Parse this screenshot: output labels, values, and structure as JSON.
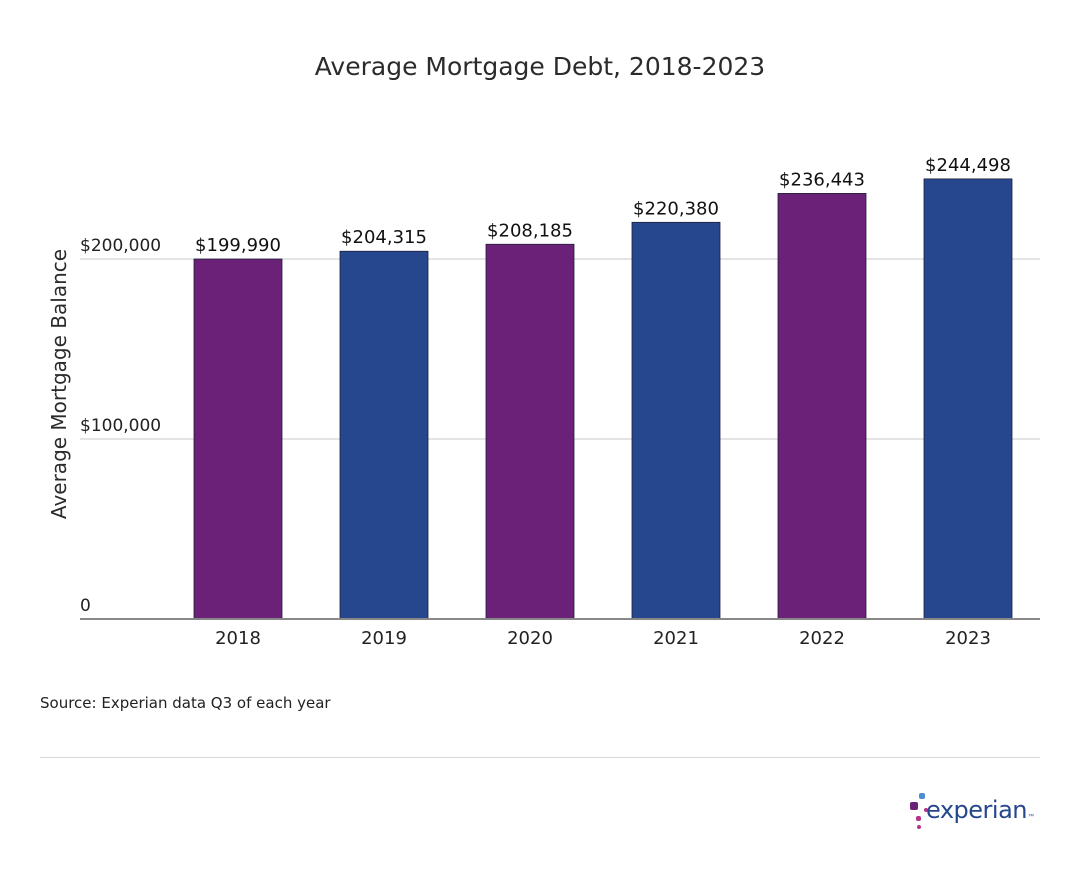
{
  "chart_data": {
    "type": "bar",
    "title": "Average Mortgage Debt, 2018-2023",
    "xlabel": "",
    "ylabel": "Average Mortgage Balance",
    "categories": [
      "2018",
      "2019",
      "2020",
      "2021",
      "2022",
      "2023"
    ],
    "values": [
      199990,
      204315,
      208185,
      220380,
      236443,
      244498
    ],
    "data_labels": [
      "$199,990",
      "$204,315",
      "$208,185",
      "$220,380",
      "$236,443",
      "$244,498"
    ],
    "bar_colors": [
      "#6a2177",
      "#26478d",
      "#6a2177",
      "#26478d",
      "#6a2177",
      "#26478d"
    ],
    "ylim": [
      0,
      250000
    ],
    "yticks": [
      0,
      100000,
      200000
    ],
    "ytick_labels": [
      "0",
      "$100,000",
      "$200,000"
    ],
    "grid": true,
    "legend": "none"
  },
  "source_note": "Source: Experian data Q3 of each year",
  "brand": {
    "name": "experian",
    "tm": "™"
  },
  "colors": {
    "purple": "#6a2177",
    "blue": "#26478d",
    "gridline": "#c8c8c8",
    "axis": "#888888",
    "brand_blue": "#26478d",
    "brand_magenta": "#b5338a",
    "brand_light_blue": "#4b8fd1",
    "brand_purple": "#6a2177"
  }
}
